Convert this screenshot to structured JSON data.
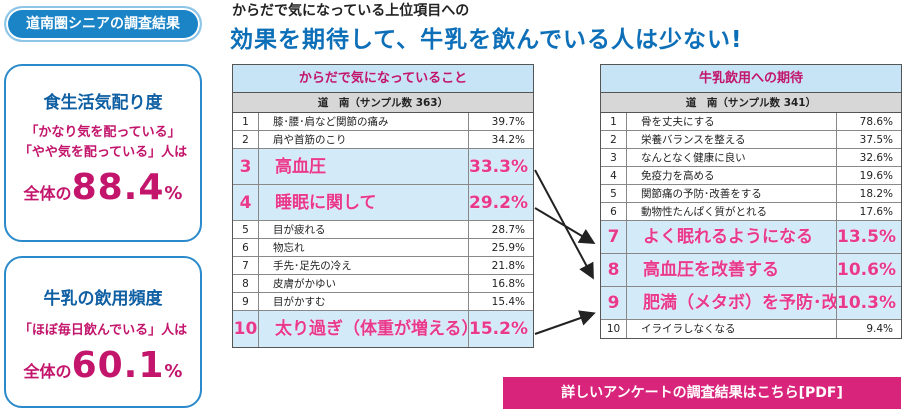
{
  "badge": "道南圏シニアの調査結果",
  "card1": {
    "title": "食生活気配り度",
    "line1": "「かなり気を配っている」",
    "line2": "「やや気を配っている」人は",
    "total_prefix": "全体の",
    "total_value": "88.4",
    "total_unit": "%"
  },
  "card2": {
    "title": "牛乳の飲用頻度",
    "line1": "「ほぼ毎日飲んでいる」人は",
    "total_prefix": "全体の",
    "total_value": "60.1",
    "total_unit": "%"
  },
  "header": {
    "sub": "からだで気になっている上位項目への",
    "main": "効果を期待して、牛乳を飲んでいる人は少ない!"
  },
  "left_table": {
    "title": "からだで気になっていること",
    "subtitle": "道　南（サンプル数 363）",
    "rows": [
      {
        "no": "1",
        "item": "膝･腰･肩など関節の痛み",
        "value": "39.7%",
        "highlight": false
      },
      {
        "no": "2",
        "item": "肩や首筋のこり",
        "value": "34.2%",
        "highlight": false
      },
      {
        "no": "3",
        "item": "高血圧",
        "value": "33.3%",
        "highlight": true
      },
      {
        "no": "4",
        "item": "睡眠に関して",
        "value": "29.2%",
        "highlight": true
      },
      {
        "no": "5",
        "item": "目が疲れる",
        "value": "28.7%",
        "highlight": false
      },
      {
        "no": "6",
        "item": "物忘れ",
        "value": "25.9%",
        "highlight": false
      },
      {
        "no": "7",
        "item": "手先･足先の冷え",
        "value": "21.8%",
        "highlight": false
      },
      {
        "no": "8",
        "item": "皮膚がかゆい",
        "value": "16.8%",
        "highlight": false
      },
      {
        "no": "9",
        "item": "目がかすむ",
        "value": "15.4%",
        "highlight": false
      },
      {
        "no": "10",
        "item": "太り過ぎ（体重が増える）",
        "value": "15.2%",
        "highlight": true
      }
    ]
  },
  "right_table": {
    "title": "牛乳飲用への期待",
    "subtitle": "道　南（サンプル数 341）",
    "rows": [
      {
        "no": "1",
        "item": "骨を丈夫にする",
        "value": "78.6%",
        "highlight": false
      },
      {
        "no": "2",
        "item": "栄養バランスを整える",
        "value": "37.5%",
        "highlight": false
      },
      {
        "no": "3",
        "item": "なんとなく健康に良い",
        "value": "32.6%",
        "highlight": false
      },
      {
        "no": "4",
        "item": "免疫力を高める",
        "value": "19.6%",
        "highlight": false
      },
      {
        "no": "5",
        "item": "関節痛の予防･改善をする",
        "value": "18.2%",
        "highlight": false
      },
      {
        "no": "6",
        "item": "動物性たんぱく質がとれる",
        "value": "17.6%",
        "highlight": false
      },
      {
        "no": "7",
        "item": "よく眠れるようになる",
        "value": "13.5%",
        "highlight": true
      },
      {
        "no": "8",
        "item": "高血圧を改善する",
        "value": "10.6%",
        "highlight": true
      },
      {
        "no": "9",
        "item": "肥満（メタボ）を予防･改善する",
        "value": "10.3%",
        "highlight": true
      },
      {
        "no": "10",
        "item": "イライラしなくなる",
        "value": "9.4%",
        "highlight": false
      }
    ]
  },
  "pdf_button": "詳しいアンケートの調査結果はこちら[PDF]"
}
